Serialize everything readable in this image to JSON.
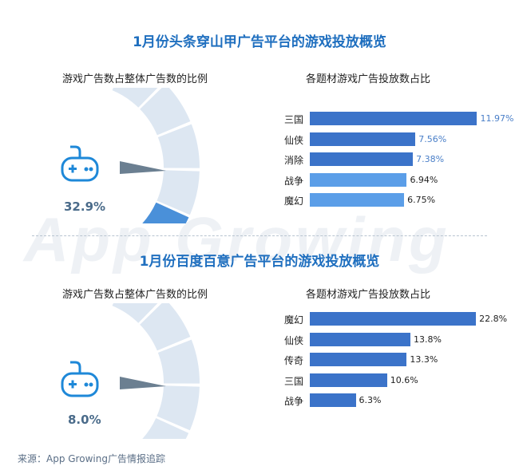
{
  "watermark": "App Growing",
  "source": "来源：App Growing广告情报追踪",
  "sections": [
    {
      "title": "1月份头条穿山甲广告平台的游戏投放概览",
      "gauge_title": "游戏广告数占整体广告数的比例",
      "bars_title": "各题材游戏广告投放数占比",
      "percent_text": "32.9%"
    },
    {
      "title": "1月份百度百意广告平台的游戏投放概览",
      "gauge_title": "游戏广告数占整体广告数的比例",
      "bars_title": "各题材游戏广告投放数占比",
      "percent_text": "8.0%"
    }
  ],
  "chart_data": [
    {
      "type": "gauge",
      "label": "游戏广告数占整体广告数的比例",
      "value": 32.9,
      "unit": "%",
      "colors": {
        "filled": "#4a90d9",
        "empty": "#dde7f2",
        "needle": "#6b7f91"
      }
    },
    {
      "type": "bar",
      "orientation": "horizontal",
      "title": "各题材游戏广告投放数占比",
      "categories": [
        "三国",
        "仙侠",
        "消除",
        "战争",
        "魔幻"
      ],
      "values": [
        11.97,
        7.56,
        7.38,
        6.94,
        6.75
      ],
      "value_labels": [
        "11.97%",
        "7.56%",
        "7.38%",
        "6.94%",
        "6.75%"
      ],
      "colors": [
        "#3b73c9",
        "#3b73c9",
        "#3b73c9",
        "#5b9ee8",
        "#5b9ee8"
      ],
      "value_label_colors": [
        "#4a7fc8",
        "#4a7fc8",
        "#4a7fc8",
        "#222222",
        "#222222"
      ],
      "xlim": [
        0,
        12
      ]
    },
    {
      "type": "gauge",
      "label": "游戏广告数占整体广告数的比例",
      "value": 8.0,
      "unit": "%",
      "colors": {
        "filled": "#4a90d9",
        "empty": "#dde7f2",
        "needle": "#6b7f91"
      }
    },
    {
      "type": "bar",
      "orientation": "horizontal",
      "title": "各题材游戏广告投放数占比",
      "categories": [
        "魔幻",
        "仙侠",
        "传奇",
        "三国",
        "战争"
      ],
      "values": [
        22.8,
        13.8,
        13.3,
        10.6,
        6.3
      ],
      "value_labels": [
        "22.8%",
        "13.8%",
        "13.3%",
        "10.6%",
        "6.3%"
      ],
      "colors": [
        "#3b73c9",
        "#3b73c9",
        "#3b73c9",
        "#3b73c9",
        "#3b73c9"
      ],
      "value_label_colors": [
        "#222222",
        "#222222",
        "#222222",
        "#222222",
        "#222222"
      ],
      "xlim": [
        0,
        23
      ]
    }
  ]
}
